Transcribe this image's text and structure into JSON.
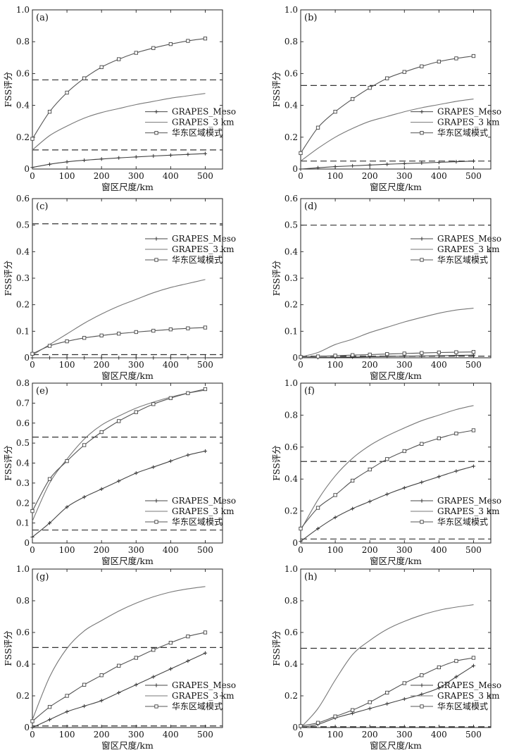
{
  "chart_data": [
    {
      "type": "line",
      "panel_label": "(a)",
      "xlabel": "窗区尺度/km",
      "ylabel": "FSS评分",
      "xlim": [
        0,
        550
      ],
      "ylim": [
        0,
        1.0
      ],
      "xticks": [
        0,
        100,
        200,
        300,
        400,
        500
      ],
      "xtick_labels": [
        "0",
        "100",
        "200",
        "300",
        "400",
        "500"
      ],
      "yticks": [
        0,
        0.2,
        0.4,
        0.6,
        0.8,
        1.0
      ],
      "ytick_labels": [
        "0",
        "0.2",
        "0.4",
        "0.6",
        "0.8",
        "1.0"
      ],
      "legend_position": "right",
      "x": [
        0,
        50,
        100,
        150,
        200,
        250,
        300,
        350,
        400,
        450,
        500
      ],
      "series": [
        {
          "name": "GRAPES_Meso",
          "marker": "plus",
          "values": [
            0.01,
            0.03,
            0.045,
            0.055,
            0.063,
            0.07,
            0.076,
            0.082,
            0.087,
            0.092,
            0.097
          ]
        },
        {
          "name": "GRAPES_3 km",
          "marker": "none",
          "values": [
            0.12,
            0.21,
            0.27,
            0.32,
            0.355,
            0.38,
            0.405,
            0.425,
            0.445,
            0.46,
            0.475
          ]
        },
        {
          "name": "华东区域模式",
          "marker": "square",
          "values": [
            0.19,
            0.36,
            0.48,
            0.57,
            0.64,
            0.69,
            0.73,
            0.76,
            0.785,
            0.805,
            0.82
          ]
        }
      ],
      "reference_lines": [
        0.56,
        0.12
      ]
    },
    {
      "type": "line",
      "panel_label": "(b)",
      "xlabel": "窗区尺度/km",
      "ylabel": "FSS评分",
      "xlim": [
        0,
        550
      ],
      "ylim": [
        0,
        1.0
      ],
      "xticks": [
        0,
        100,
        200,
        300,
        400,
        500
      ],
      "xtick_labels": [
        "0",
        "100",
        "200",
        "300",
        "400",
        "500"
      ],
      "yticks": [
        0,
        0.2,
        0.4,
        0.6,
        0.8,
        1.0
      ],
      "ytick_labels": [
        "0",
        "0.2",
        "0.4",
        "0.6",
        "0.8",
        "1.0"
      ],
      "legend_position": "right",
      "x": [
        0,
        50,
        100,
        150,
        200,
        250,
        300,
        350,
        400,
        450,
        500
      ],
      "series": [
        {
          "name": "GRAPES_Meso",
          "marker": "plus",
          "values": [
            0.0,
            0.008,
            0.015,
            0.02,
            0.025,
            0.03,
            0.034,
            0.038,
            0.042,
            0.046,
            0.05
          ]
        },
        {
          "name": "GRAPES_3 km",
          "marker": "none",
          "values": [
            0.05,
            0.13,
            0.2,
            0.255,
            0.3,
            0.33,
            0.36,
            0.385,
            0.405,
            0.425,
            0.44
          ]
        },
        {
          "name": "华东区域模式",
          "marker": "square",
          "values": [
            0.1,
            0.26,
            0.36,
            0.44,
            0.51,
            0.57,
            0.61,
            0.645,
            0.675,
            0.695,
            0.71
          ]
        }
      ],
      "reference_lines": [
        0.525,
        0.05
      ]
    },
    {
      "type": "line",
      "panel_label": "(c)",
      "xlabel": "窗区尺度/km",
      "ylabel": "FSS评分",
      "xlim": [
        0,
        550
      ],
      "ylim": [
        0,
        0.6
      ],
      "xticks": [
        0,
        100,
        200,
        300,
        400,
        500
      ],
      "xtick_labels": [
        "0",
        "100",
        "200",
        "300",
        "400",
        "500"
      ],
      "yticks": [
        0,
        0.1,
        0.2,
        0.3,
        0.4,
        0.5,
        0.6
      ],
      "ytick_labels": [
        "0",
        "0.1",
        "0.2",
        "0.3",
        "0.4",
        "0.5",
        "0.6"
      ],
      "legend_position": "right",
      "x": [
        0,
        50,
        100,
        150,
        200,
        250,
        300,
        350,
        400,
        450,
        500
      ],
      "series": [
        {
          "name": "GRAPES_Meso",
          "marker": "plus",
          "values": [
            0.0,
            0.0,
            0.0,
            0.0,
            0.0,
            0.0,
            0.0,
            0.0,
            0.0,
            0.0,
            0.0
          ]
        },
        {
          "name": "GRAPES_3 km",
          "marker": "none",
          "values": [
            0.01,
            0.05,
            0.09,
            0.13,
            0.165,
            0.195,
            0.22,
            0.245,
            0.265,
            0.28,
            0.295
          ]
        },
        {
          "name": "华东区域模式",
          "marker": "square",
          "values": [
            0.015,
            0.045,
            0.062,
            0.075,
            0.084,
            0.091,
            0.097,
            0.102,
            0.107,
            0.111,
            0.114
          ]
        }
      ],
      "reference_lines": [
        0.505,
        0.012
      ]
    },
    {
      "type": "line",
      "panel_label": "(d)",
      "xlabel": "窗区尺度/km",
      "ylabel": "FSS评分",
      "xlim": [
        0,
        550
      ],
      "ylim": [
        0,
        0.6
      ],
      "xticks": [
        0,
        100,
        200,
        300,
        400,
        500
      ],
      "xtick_labels": [
        "0",
        "100",
        "200",
        "300",
        "400",
        "500"
      ],
      "yticks": [
        0,
        0.1,
        0.2,
        0.3,
        0.4,
        0.5,
        0.6
      ],
      "ytick_labels": [
        "0",
        "0.1",
        "0.2",
        "0.3",
        "0.4",
        "0.5",
        "0.6"
      ],
      "legend_position": "right",
      "x": [
        0,
        50,
        100,
        150,
        200,
        250,
        300,
        350,
        400,
        450,
        500
      ],
      "series": [
        {
          "name": "GRAPES_Meso",
          "marker": "plus",
          "values": [
            0.0,
            0.001,
            0.002,
            0.003,
            0.004,
            0.005,
            0.006,
            0.007,
            0.008,
            0.009,
            0.01
          ]
        },
        {
          "name": "GRAPES_3 km",
          "marker": "none",
          "values": [
            0.003,
            0.02,
            0.05,
            0.07,
            0.095,
            0.115,
            0.135,
            0.152,
            0.168,
            0.18,
            0.187
          ]
        },
        {
          "name": "华东区域模式",
          "marker": "square",
          "values": [
            0.003,
            0.005,
            0.008,
            0.01,
            0.012,
            0.014,
            0.016,
            0.018,
            0.02,
            0.021,
            0.022
          ]
        }
      ],
      "reference_lines": [
        0.5,
        0.006
      ]
    },
    {
      "type": "line",
      "panel_label": "(e)",
      "xlabel": "窗区尺度/km",
      "ylabel": "FSS评分",
      "xlim": [
        0,
        550
      ],
      "ylim": [
        0,
        0.8
      ],
      "xticks": [
        0,
        100,
        200,
        300,
        400,
        500
      ],
      "xtick_labels": [
        "0",
        "100",
        "200",
        "300",
        "400",
        "500"
      ],
      "yticks": [
        0,
        0.1,
        0.2,
        0.3,
        0.4,
        0.5,
        0.6,
        0.7,
        0.8
      ],
      "ytick_labels": [
        "0",
        "0.1",
        "0.2",
        "0.3",
        "0.4",
        "0.5",
        "0.6",
        "0.7",
        "0.8"
      ],
      "legend_position": "lower-right",
      "x": [
        0,
        50,
        100,
        150,
        200,
        250,
        300,
        350,
        400,
        450,
        500
      ],
      "series": [
        {
          "name": "GRAPES_Meso",
          "marker": "plus",
          "values": [
            0.03,
            0.1,
            0.18,
            0.23,
            0.27,
            0.31,
            0.35,
            0.38,
            0.41,
            0.44,
            0.46
          ]
        },
        {
          "name": "GRAPES_3 km",
          "marker": "none",
          "values": [
            0.11,
            0.3,
            0.42,
            0.52,
            0.59,
            0.635,
            0.675,
            0.705,
            0.73,
            0.75,
            0.765
          ]
        },
        {
          "name": "华东区域模式",
          "marker": "square",
          "values": [
            0.16,
            0.32,
            0.41,
            0.49,
            0.555,
            0.61,
            0.655,
            0.695,
            0.725,
            0.75,
            0.77
          ]
        }
      ],
      "reference_lines": [
        0.53,
        0.065
      ]
    },
    {
      "type": "line",
      "panel_label": "(f)",
      "xlabel": "窗区尺度/km",
      "ylabel": "FSS评分",
      "xlim": [
        0,
        550
      ],
      "ylim": [
        0,
        1.0
      ],
      "xticks": [
        0,
        100,
        200,
        300,
        400,
        500
      ],
      "xtick_labels": [
        "0",
        "100",
        "200",
        "300",
        "400",
        "500"
      ],
      "yticks": [
        0,
        0.2,
        0.4,
        0.6,
        0.8,
        1.0
      ],
      "ytick_labels": [
        "0",
        "0.2",
        "0.4",
        "0.6",
        "0.8",
        "1.0"
      ],
      "legend_position": "lower-right",
      "x": [
        0,
        50,
        100,
        150,
        200,
        250,
        300,
        350,
        400,
        450,
        500
      ],
      "series": [
        {
          "name": "GRAPES_Meso",
          "marker": "plus",
          "values": [
            0.01,
            0.09,
            0.16,
            0.215,
            0.26,
            0.305,
            0.345,
            0.38,
            0.415,
            0.45,
            0.48
          ]
        },
        {
          "name": "GRAPES_3 km",
          "marker": "none",
          "values": [
            0.08,
            0.27,
            0.42,
            0.53,
            0.61,
            0.67,
            0.72,
            0.765,
            0.8,
            0.835,
            0.86
          ]
        },
        {
          "name": "华东区域模式",
          "marker": "square",
          "values": [
            0.09,
            0.22,
            0.3,
            0.39,
            0.46,
            0.525,
            0.575,
            0.62,
            0.655,
            0.685,
            0.705
          ]
        }
      ],
      "reference_lines": [
        0.51,
        0.025
      ]
    },
    {
      "type": "line",
      "panel_label": "(g)",
      "xlabel": "窗区尺度/km",
      "ylabel": "FSS评分",
      "xlim": [
        0,
        550
      ],
      "ylim": [
        0,
        1.0
      ],
      "xticks": [
        0,
        100,
        200,
        300,
        400,
        500
      ],
      "xtick_labels": [
        "0",
        "100",
        "200",
        "300",
        "400",
        "500"
      ],
      "yticks": [
        0,
        0.2,
        0.4,
        0.6,
        0.8,
        1.0
      ],
      "ytick_labels": [
        "0",
        "0.2",
        "0.4",
        "0.6",
        "0.8",
        "1.0"
      ],
      "legend_position": "lower-right",
      "x": [
        0,
        50,
        100,
        150,
        200,
        250,
        300,
        350,
        400,
        450,
        500
      ],
      "series": [
        {
          "name": "GRAPES_Meso",
          "marker": "plus",
          "values": [
            0.0,
            0.05,
            0.1,
            0.135,
            0.17,
            0.22,
            0.27,
            0.32,
            0.37,
            0.42,
            0.47
          ]
        },
        {
          "name": "GRAPES_3 km",
          "marker": "none",
          "values": [
            0.05,
            0.32,
            0.5,
            0.61,
            0.675,
            0.735,
            0.785,
            0.825,
            0.855,
            0.875,
            0.89
          ]
        },
        {
          "name": "华东区域模式",
          "marker": "square",
          "values": [
            0.04,
            0.13,
            0.2,
            0.27,
            0.33,
            0.39,
            0.44,
            0.49,
            0.535,
            0.575,
            0.6
          ]
        }
      ],
      "reference_lines": [
        0.505,
        0.01
      ]
    },
    {
      "type": "line",
      "panel_label": "(h)",
      "xlabel": "窗区尺度/km",
      "ylabel": "FSS评分",
      "xlim": [
        0,
        550
      ],
      "ylim": [
        0,
        1.0
      ],
      "xticks": [
        0,
        100,
        200,
        300,
        400,
        500
      ],
      "xtick_labels": [
        "0",
        "100",
        "200",
        "300",
        "400",
        "500"
      ],
      "yticks": [
        0,
        0.2,
        0.4,
        0.6,
        0.8,
        1.0
      ],
      "ytick_labels": [
        "0",
        "0.2",
        "0.4",
        "0.6",
        "0.8",
        "1.0"
      ],
      "legend_position": "lower-right",
      "x": [
        0,
        50,
        100,
        150,
        200,
        250,
        300,
        350,
        400,
        450,
        500
      ],
      "series": [
        {
          "name": "GRAPES_Meso",
          "marker": "plus",
          "values": [
            0.0,
            0.02,
            0.06,
            0.09,
            0.12,
            0.15,
            0.18,
            0.21,
            0.25,
            0.32,
            0.39
          ]
        },
        {
          "name": "GRAPES_3 km",
          "marker": "none",
          "values": [
            0.0,
            0.12,
            0.3,
            0.46,
            0.55,
            0.62,
            0.67,
            0.71,
            0.74,
            0.76,
            0.775
          ]
        },
        {
          "name": "华东区域模式",
          "marker": "square",
          "values": [
            0.01,
            0.03,
            0.07,
            0.11,
            0.16,
            0.22,
            0.28,
            0.33,
            0.38,
            0.42,
            0.44
          ]
        }
      ],
      "reference_lines": [
        0.5,
        0.005
      ]
    }
  ]
}
